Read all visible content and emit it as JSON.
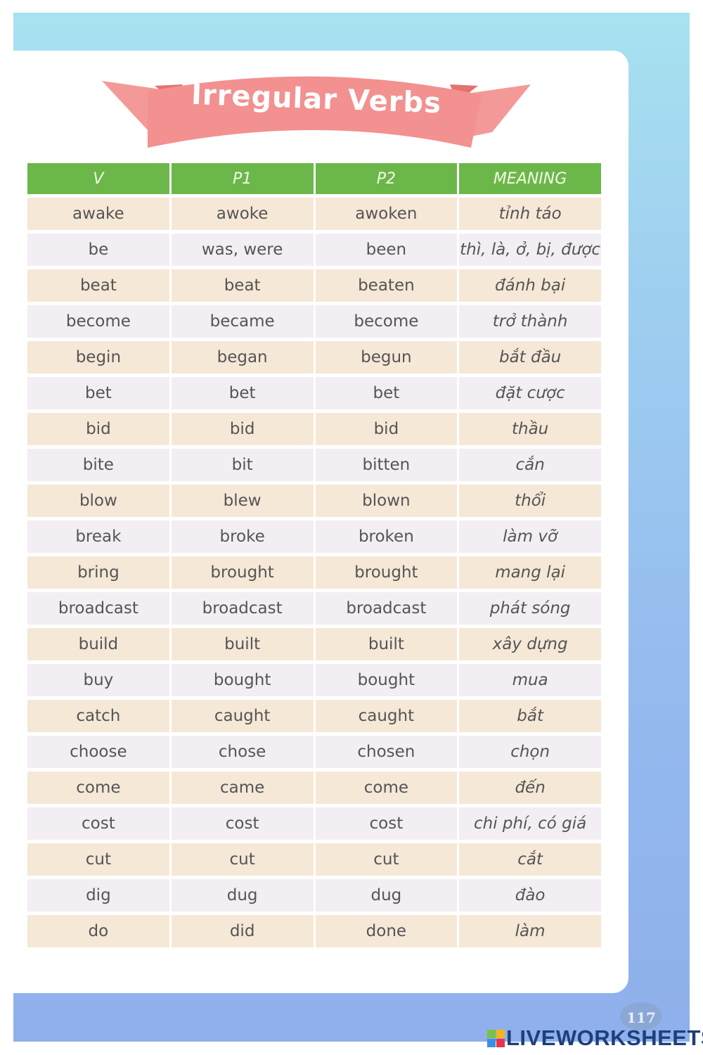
{
  "title": "Irregular Verbs",
  "headers": [
    "V",
    "P1",
    "P2",
    "MEANING"
  ],
  "rows": [
    [
      "awake",
      "awoke",
      "awoken",
      "tỉnh táo"
    ],
    [
      "be",
      "was, were",
      "been",
      "thì, là, ở, bị, được"
    ],
    [
      "beat",
      "beat",
      "beaten",
      "đánh bại"
    ],
    [
      "become",
      "became",
      "become",
      "trở thành"
    ],
    [
      "begin",
      "began",
      "begun",
      "bắt đầu"
    ],
    [
      "bet",
      "bet",
      "bet",
      "đặt cược"
    ],
    [
      "bid",
      "bid",
      "bid",
      "thầu"
    ],
    [
      "bite",
      "bit",
      "bitten",
      "cắn"
    ],
    [
      "blow",
      "blew",
      "blown",
      "thổi"
    ],
    [
      "break",
      "broke",
      "broken",
      "làm vỡ"
    ],
    [
      "bring",
      "brought",
      "brought",
      "mang lại"
    ],
    [
      "broadcast",
      "broadcast",
      "broadcast",
      "phát sóng"
    ],
    [
      "build",
      "built",
      "built",
      "xây dựng"
    ],
    [
      "buy",
      "bought",
      "bought",
      "mua"
    ],
    [
      "catch",
      "caught",
      "caught",
      "bắt"
    ],
    [
      "choose",
      "chose",
      "chosen",
      "chọn"
    ],
    [
      "come",
      "came",
      "come",
      "đến"
    ],
    [
      "cost",
      "cost",
      "cost",
      "chi phí, có giá"
    ],
    [
      "cut",
      "cut",
      "cut",
      "cắt"
    ],
    [
      "dig",
      "dug",
      "dug",
      "đào"
    ],
    [
      "do",
      "did",
      "done",
      "làm"
    ]
  ],
  "page_number": "117",
  "watermark": "LIVEWORKSHEETS",
  "watermark_logo_letters": [
    "L",
    "I",
    "V",
    "E"
  ],
  "colors": {
    "header": "#6cb74a",
    "banner": "#f08a8a",
    "row_odd": "#f6e8d7",
    "row_even": "#f3eef4",
    "background": "#93b8ee"
  }
}
